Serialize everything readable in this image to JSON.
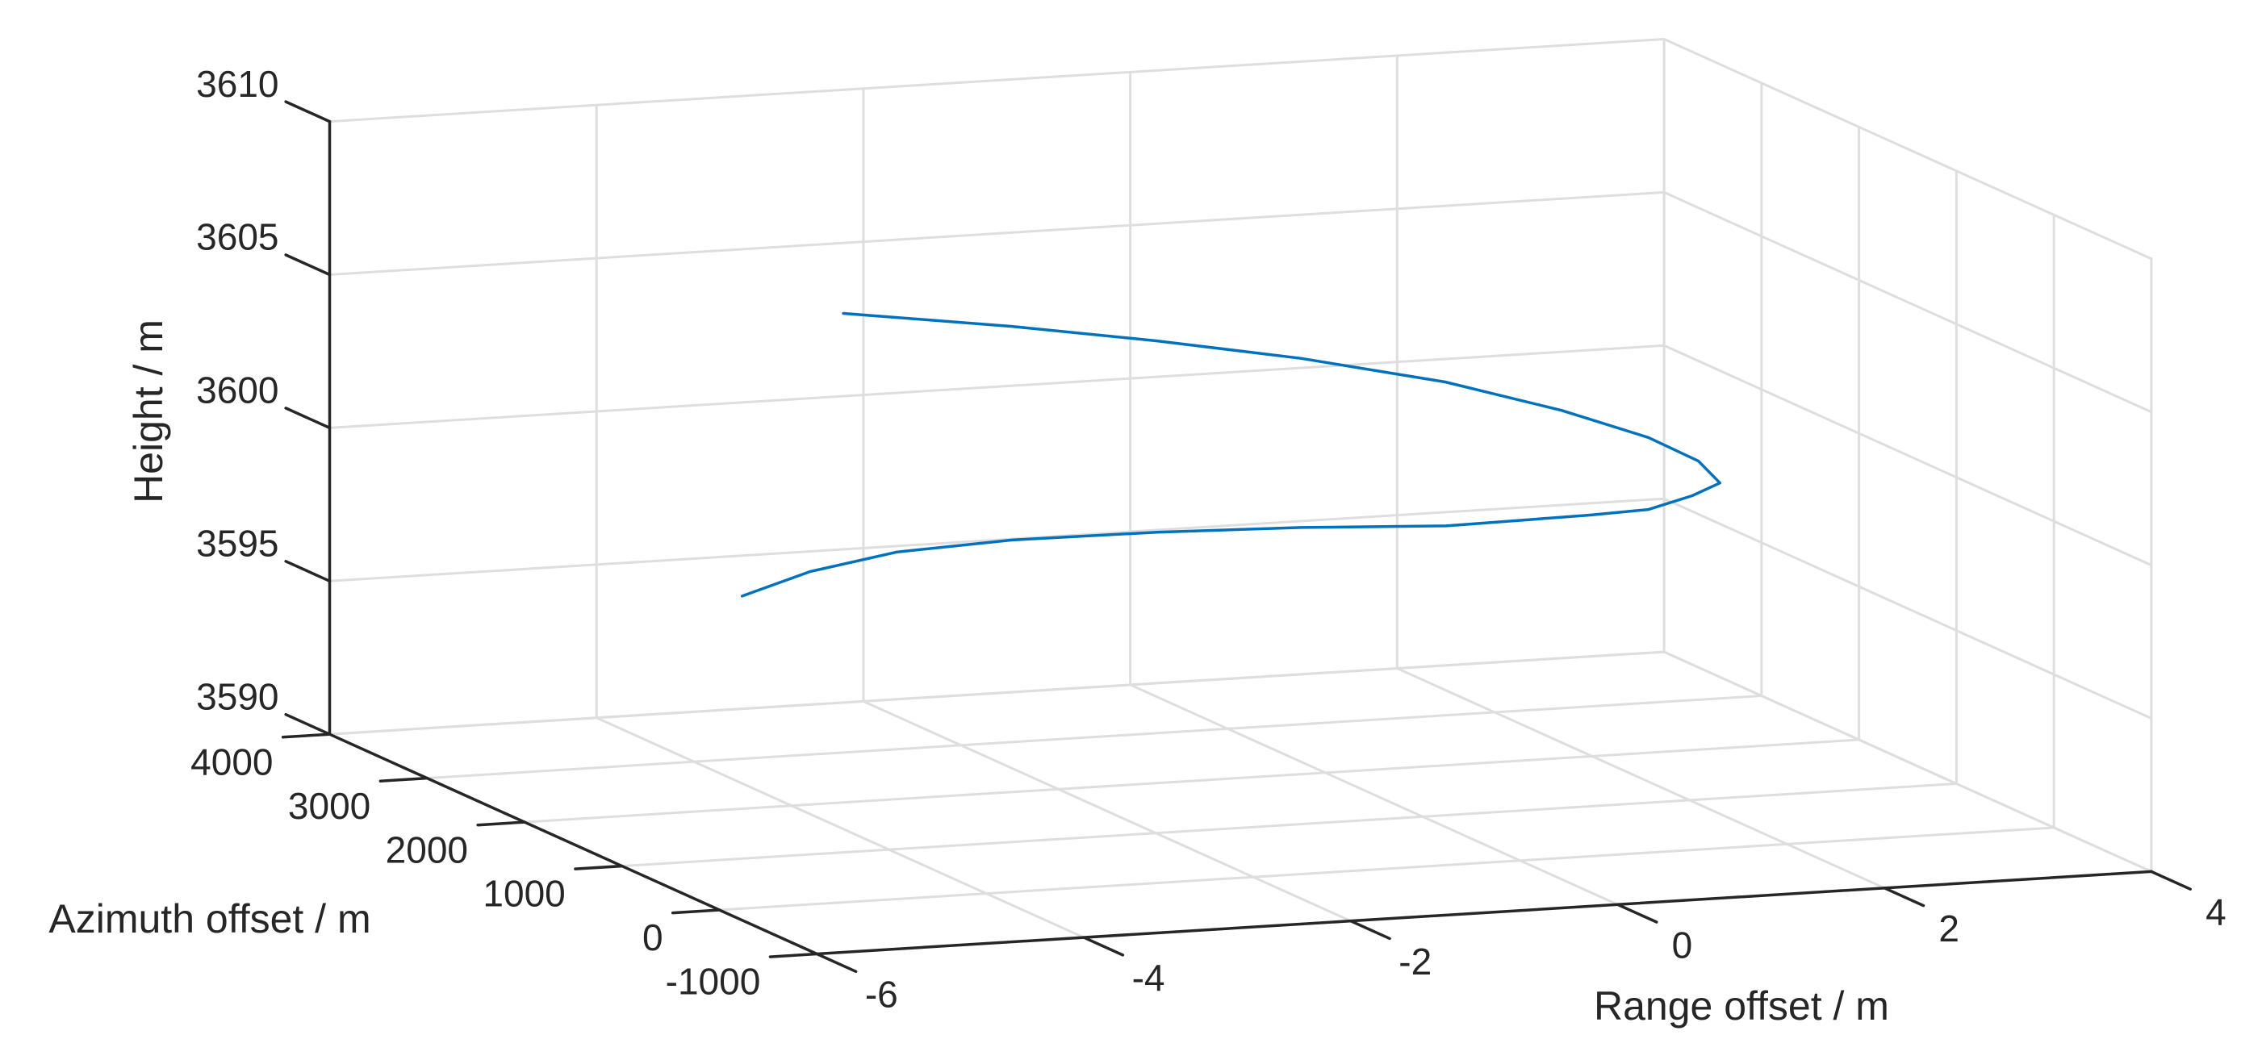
{
  "chart_data": {
    "type": "line3d",
    "xlabel": "Range offset / m",
    "ylabel": "Azimuth offset / m",
    "zlabel": "Height / m",
    "color": "#0072bd",
    "grid": true,
    "x": [
      -5.83,
      -5.16,
      -4.35,
      -3.32,
      -2.07,
      -0.83,
      0.42,
      1.66,
      2.26,
      2.75,
      3.12,
      3.12,
      2.91,
      2.42,
      1.71,
      0.79,
      -0.13,
      -1.05,
      -2.15
    ],
    "y": [
      0,
      222,
      444,
      667,
      889,
      1111,
      1333,
      1556,
      1778,
      2000,
      2222,
      2444,
      2667,
      2889,
      3111,
      3333,
      3556,
      3778,
      4000
    ],
    "z": [
      3600.2,
      3600.5,
      3600.6,
      3600.4,
      3600.0,
      3599.5,
      3598.9,
      3598.6,
      3598.3,
      3598.3,
      3598.3,
      3598.7,
      3599.2,
      3599.9,
      3600.7,
      3601.4,
      3601.9,
      3602.3,
      3602.7
    ],
    "xlim": [
      -6,
      4
    ],
    "xticks": [
      -6,
      -4,
      -2,
      0,
      2,
      4
    ],
    "ylim": [
      -1000,
      4000
    ],
    "yticks": [
      -1000,
      0,
      1000,
      2000,
      3000,
      4000
    ],
    "zlim": [
      3590,
      3610
    ],
    "zticks": [
      3590,
      3595,
      3600,
      3605,
      3610
    ]
  }
}
